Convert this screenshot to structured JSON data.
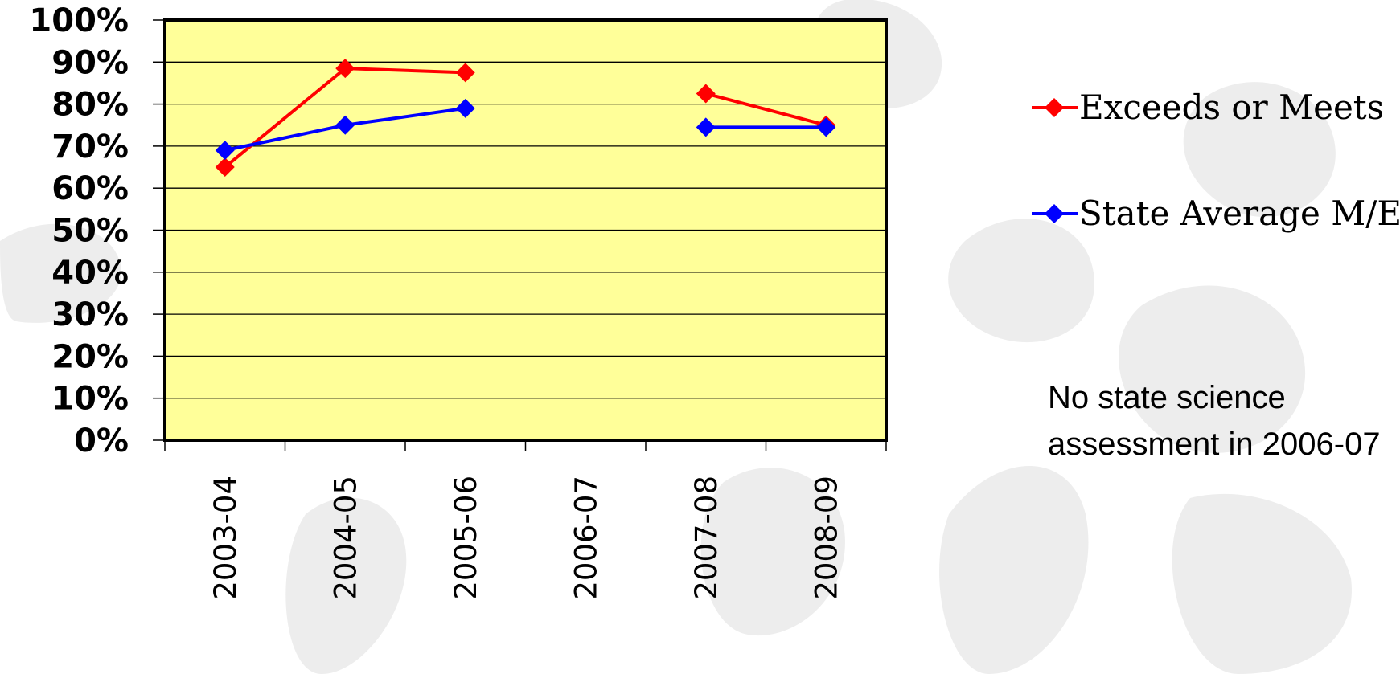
{
  "chart_data": {
    "type": "line",
    "title": "",
    "xlabel": "",
    "ylabel": "",
    "categories": [
      "2003-04",
      "2004-05",
      "2005-06",
      "2006-07",
      "2007-08",
      "2008-09"
    ],
    "series": [
      {
        "name": "Exceeds or Meets",
        "color": "#ff0000",
        "values": [
          65,
          88.5,
          87.5,
          null,
          82.5,
          75
        ]
      },
      {
        "name": "State Average M/E",
        "color": "#0000ff",
        "values": [
          69,
          75,
          79,
          null,
          74.5,
          74.5
        ]
      }
    ],
    "y_ticks": [
      "0%",
      "10%",
      "20%",
      "30%",
      "40%",
      "50%",
      "60%",
      "70%",
      "80%",
      "90%",
      "100%"
    ],
    "ylim": [
      0,
      100
    ],
    "grid": true,
    "plot_background": "#ffff99",
    "legend_position": "right",
    "marker": "diamond",
    "note": "No state science assessment in 2006-07"
  }
}
